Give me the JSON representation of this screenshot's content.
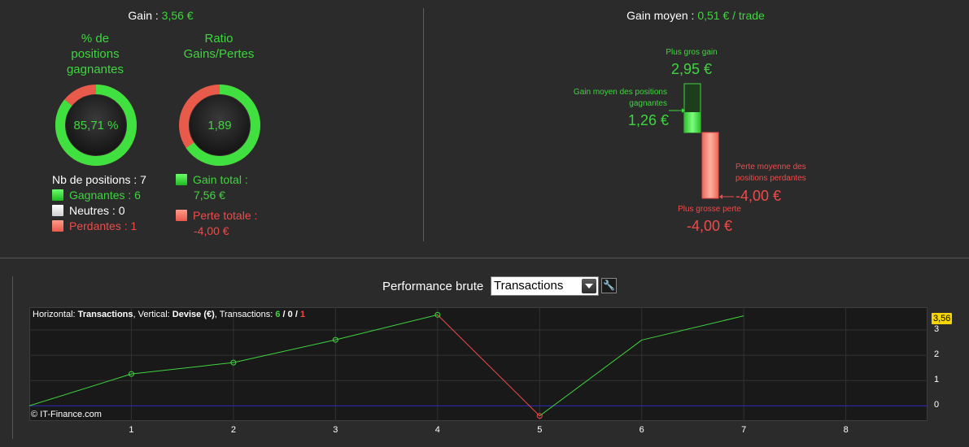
{
  "summary": {
    "gain_label": "Gain : ",
    "gain_value": "3,56 €",
    "win_pct_title_1": "% de",
    "win_pct_title_2": "positions",
    "win_pct_title_3": "gagnantes",
    "win_pct_value": "85,71 %",
    "win_fraction": 0.8571,
    "ratio_title_1": "Ratio",
    "ratio_title_2": "Gains/Pertes",
    "ratio_value": "1,89",
    "ratio_green_fraction": 0.654,
    "nb_positions": "Nb de positions : 7",
    "winning": "Gagnantes : 6",
    "neutral": "Neutres : 0",
    "losing": "Perdantes : 1",
    "gain_total_label": "Gain total :",
    "gain_total_value": "7,56 €",
    "loss_total_label": "Perte totale :",
    "loss_total_value": "-4,00 €"
  },
  "avg": {
    "title_label": "Gain moyen : ",
    "title_value": "0,51 € / trade",
    "max_gain_label": "Plus gros gain",
    "max_gain_value": "2,95 €",
    "avg_gain_label_1": "Gain moyen des positions",
    "avg_gain_label_2": "gagnantes",
    "avg_gain_value": "1,26 €",
    "avg_loss_label_1": "Perte moyenne des",
    "avg_loss_label_2": "positions perdantes",
    "avg_loss_value": "-4,00 €",
    "max_loss_label": "Plus grosse perte",
    "max_loss_value": "-4,00 €"
  },
  "perf": {
    "title": "Performance brute",
    "selected": "Transactions",
    "info_h": "Horizontal: ",
    "info_h_val": "Transactions",
    "info_v": ", Vertical: ",
    "info_v_val": "Devise (€)",
    "info_t": ", Transactions: ",
    "info_win": "6",
    "info_sep1": " / ",
    "info_neu": "0",
    "info_sep2": " / ",
    "info_loss": "1",
    "copyright": "© IT-Finance.com",
    "current_value": "3,56"
  },
  "colors": {
    "green": "#3fd53f",
    "red": "#ee4b4b",
    "zero_line": "#2a2ab4",
    "bg": "#2b2b2b",
    "chart_bg": "#191919"
  },
  "chart_data": {
    "type": "line",
    "x": [
      0,
      1,
      2,
      3,
      4,
      5,
      6,
      7
    ],
    "values": [
      0,
      1.26,
      1.71,
      2.61,
      3.6,
      -0.4,
      2.6,
      3.56
    ],
    "marker_x": [
      1,
      2,
      3,
      4,
      5
    ],
    "segment_colors": [
      "green",
      "green",
      "green",
      "green",
      "red",
      "green",
      "green"
    ],
    "x_ticks": [
      "1",
      "2",
      "3",
      "4",
      "5",
      "6",
      "7",
      "8"
    ],
    "y_ticks": [
      "0",
      "1",
      "2",
      "3"
    ],
    "xlim": [
      0,
      8.8
    ],
    "ylim": [
      -0.6,
      3.9
    ],
    "grid": true
  }
}
